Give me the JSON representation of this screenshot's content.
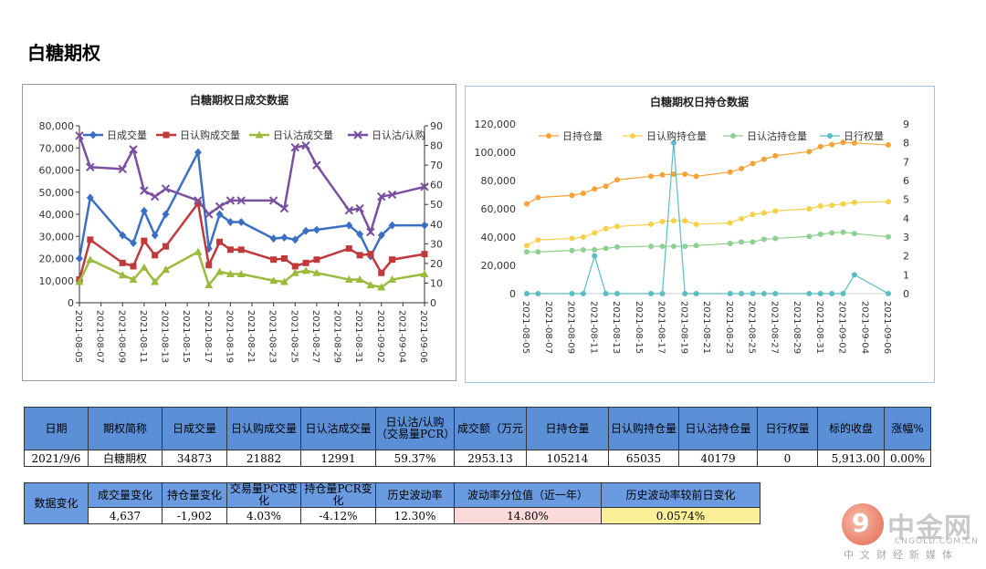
{
  "page_title": "白糖期权",
  "chart_data": [
    {
      "type": "line",
      "title": "白糖期权日成交数据",
      "categories": [
        "2021-08-05",
        "2021-08-06",
        "2021-08-09",
        "2021-08-10",
        "2021-08-11",
        "2021-08-12",
        "2021-08-13",
        "2021-08-16",
        "2021-08-17",
        "2021-08-18",
        "2021-08-19",
        "2021-08-20",
        "2021-08-23",
        "2021-08-24",
        "2021-08-25",
        "2021-08-26",
        "2021-08-27",
        "2021-08-30",
        "2021-08-31",
        "2021-09-01",
        "2021-09-02",
        "2021-09-03",
        "2021-09-06"
      ],
      "x_tick_labels": [
        "2021-08-05",
        "2021-08-07",
        "2021-08-09",
        "2021-08-11",
        "2021-08-13",
        "2021-08-15",
        "2021-08-17",
        "2021-08-19",
        "2021-08-21",
        "2021-08-23",
        "2021-08-25",
        "2021-08-27",
        "2021-08-29",
        "2021-08-31",
        "2021-09-02",
        "2021-09-04",
        "2021-09-06"
      ],
      "y_left_ticks": [
        "0",
        "10,000",
        "20,000",
        "30,000",
        "40,000",
        "50,000",
        "60,000",
        "70,000",
        "80,000"
      ],
      "y_right_ticks": [
        "0",
        "10",
        "20",
        "30",
        "40",
        "50",
        "60",
        "70",
        "80",
        "90"
      ],
      "ylim_left": [
        0,
        80000
      ],
      "ylim_right": [
        0,
        90
      ],
      "legend_position": "top",
      "series": [
        {
          "name": "日成交量",
          "axis": "left",
          "color": "#3b6fc4",
          "marker": "diamond",
          "values": [
            20000,
            47500,
            30500,
            27000,
            41500,
            30500,
            40000,
            68000,
            24500,
            40000,
            36500,
            36500,
            29000,
            29500,
            28500,
            32500,
            33000,
            35000,
            31000,
            21000,
            30500,
            35000,
            35000
          ]
        },
        {
          "name": "日认购成交量",
          "axis": "left",
          "color": "#c0393b",
          "marker": "square",
          "values": [
            10500,
            28500,
            18000,
            16500,
            28000,
            21500,
            25500,
            45000,
            17000,
            27500,
            24000,
            24000,
            19500,
            20000,
            16500,
            18000,
            19500,
            24500,
            21500,
            22000,
            13500,
            19500,
            22000
          ]
        },
        {
          "name": "日认沽成交量",
          "axis": "left",
          "color": "#9bbb3c",
          "marker": "triangle",
          "values": [
            9500,
            19500,
            12500,
            10500,
            16000,
            9500,
            15000,
            23000,
            8000,
            14000,
            13000,
            13000,
            10000,
            9500,
            13500,
            14500,
            13500,
            10500,
            10500,
            8000,
            7000,
            10500,
            13000
          ]
        },
        {
          "name": "日认沽/认购",
          "axis": "right",
          "color": "#7a4fa0",
          "marker": "x",
          "values": [
            85,
            69,
            68,
            78,
            57,
            54,
            58,
            52,
            45,
            49,
            52,
            52,
            52,
            48,
            79,
            80,
            70,
            47,
            48,
            36,
            54,
            55,
            59
          ]
        }
      ]
    },
    {
      "type": "line",
      "title": "白糖期权日持仓数据",
      "categories": [
        "2021-08-05",
        "2021-08-06",
        "2021-08-09",
        "2021-08-10",
        "2021-08-11",
        "2021-08-12",
        "2021-08-13",
        "2021-08-16",
        "2021-08-17",
        "2021-08-18",
        "2021-08-19",
        "2021-08-20",
        "2021-08-23",
        "2021-08-24",
        "2021-08-25",
        "2021-08-26",
        "2021-08-27",
        "2021-08-30",
        "2021-08-31",
        "2021-09-01",
        "2021-09-02",
        "2021-09-03",
        "2021-09-06"
      ],
      "x_tick_labels": [
        "2021-08-05",
        "2021-08-07",
        "2021-08-09",
        "2021-08-11",
        "2021-08-13",
        "2021-08-15",
        "2021-08-17",
        "2021-08-19",
        "2021-08-21",
        "2021-08-23",
        "2021-08-25",
        "2021-08-27",
        "2021-08-29",
        "2021-08-31",
        "2021-09-02",
        "2021-09-04",
        "2021-09-06"
      ],
      "y_left_ticks": [
        "0",
        "20,000",
        "40,000",
        "60,000",
        "80,000",
        "100,000",
        "120,000"
      ],
      "y_right_ticks": [
        "0",
        "1",
        "2",
        "3",
        "4",
        "5",
        "6",
        "7",
        "8",
        "9"
      ],
      "ylim_left": [
        0,
        120000
      ],
      "ylim_right": [
        0,
        9
      ],
      "legend_position": "top",
      "series": [
        {
          "name": "日持仓量",
          "axis": "left",
          "color": "#f5a236",
          "marker": "circle",
          "values": [
            63500,
            68000,
            69500,
            71000,
            74000,
            76000,
            80500,
            83000,
            84000,
            84500,
            84500,
            83000,
            86000,
            88500,
            92000,
            95000,
            97500,
            100500,
            104000,
            105500,
            107000,
            106500,
            105214
          ]
        },
        {
          "name": "日认购持仓量",
          "axis": "left",
          "color": "#f7d04b",
          "marker": "circle",
          "values": [
            34000,
            38000,
            39000,
            40000,
            43000,
            46000,
            47500,
            49000,
            51000,
            51500,
            51500,
            49000,
            50000,
            53000,
            56000,
            57000,
            58500,
            60000,
            62000,
            62500,
            63500,
            64500,
            65035
          ]
        },
        {
          "name": "日认沽持仓量",
          "axis": "left",
          "color": "#8fcf8f",
          "marker": "circle",
          "values": [
            29500,
            29500,
            30500,
            31000,
            31000,
            32000,
            33000,
            33500,
            33500,
            33500,
            33500,
            34000,
            35500,
            36500,
            36500,
            38500,
            39000,
            40500,
            42000,
            43000,
            43500,
            42500,
            40179
          ]
        },
        {
          "name": "日行权量",
          "axis": "right",
          "color": "#5bbdc4",
          "marker": "circle",
          "values": [
            0,
            0,
            0,
            0,
            2,
            0,
            0,
            0,
            0,
            8,
            0,
            0,
            0,
            0,
            0,
            0,
            0,
            0,
            0,
            0,
            0,
            1,
            0
          ]
        }
      ]
    }
  ],
  "table1": {
    "headers": [
      "日期",
      "期权简称",
      "日成交量",
      "日认购成交量",
      "日认沽成交量",
      "日认沽/认购（交易量PCR）",
      "成交额（万元",
      "日持仓量",
      "日认购持仓量",
      "日认沽持仓量",
      "日行权量",
      "标的收盘",
      "涨幅%"
    ],
    "row": [
      "2021/9/6",
      "白糖期权",
      "34873",
      "21882",
      "12991",
      "59.37%",
      "2953.13",
      "105214",
      "65035",
      "40179",
      "0",
      "5,913.00",
      "0.00%"
    ]
  },
  "table2": {
    "row_header": "数据变化",
    "headers": [
      "成交量变化",
      "持仓量变化",
      "交易量PCR变化",
      "持仓量PCR变化",
      "历史波动率",
      "波动率分位值（近一年）",
      "历史波动率较前日变化"
    ],
    "row": [
      "4,637",
      "-1,902",
      "4.03%",
      "-4.12%",
      "12.30%",
      "14.80%",
      "0.0574%"
    ],
    "highlight_colors": {
      "percentile": "#fbdada",
      "change": "#fbef98"
    }
  },
  "logo": {
    "mark": "9",
    "name_cn": "中金网",
    "name_en": "CNGOLD.COM.CN",
    "tagline": "中文财经新媒体"
  }
}
